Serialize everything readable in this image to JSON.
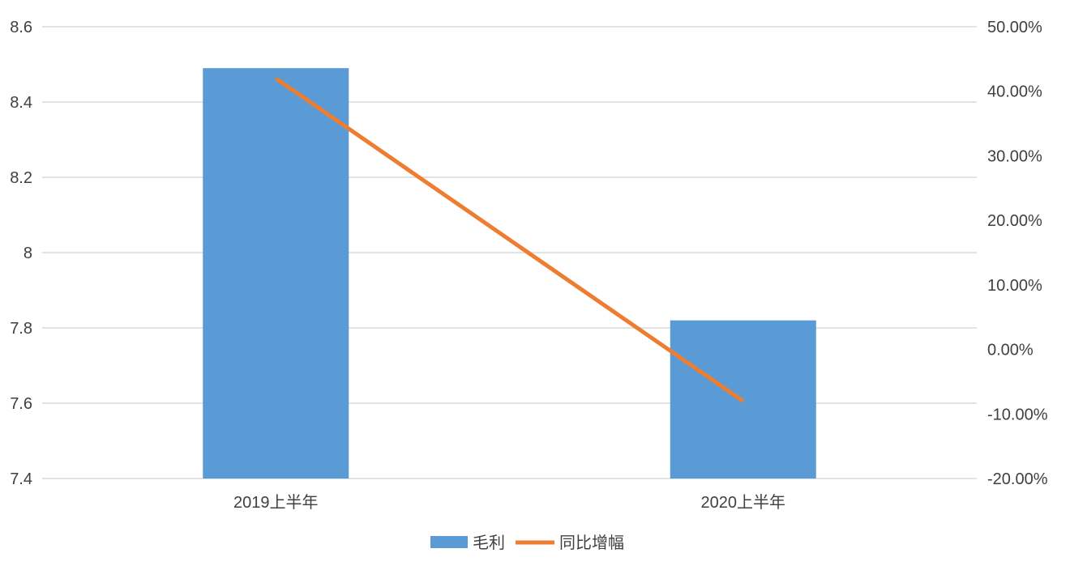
{
  "chart_data": {
    "type": "bar",
    "categories": [
      "2019上半年",
      "2020上半年"
    ],
    "series": [
      {
        "name": "毛利",
        "type": "bar",
        "axis": "left",
        "values": [
          8.49,
          7.82
        ],
        "color": "#5b9bd5"
      },
      {
        "name": "同比增幅",
        "type": "line",
        "axis": "right",
        "values": [
          42.0,
          -8.0
        ],
        "color": "#ed7d31"
      }
    ],
    "y_left": {
      "min": 7.4,
      "max": 8.6,
      "ticks": [
        "7.4",
        "7.6",
        "7.8",
        "8",
        "8.2",
        "8.4",
        "8.6"
      ],
      "tick_values": [
        7.4,
        7.6,
        7.8,
        8.0,
        8.2,
        8.4,
        8.6
      ]
    },
    "y_right": {
      "min": -20,
      "max": 50,
      "ticks": [
        "-20.00%",
        "-10.00%",
        "0.00%",
        "10.00%",
        "20.00%",
        "30.00%",
        "40.00%",
        "50.00%"
      ],
      "tick_values": [
        -20,
        -10,
        0,
        10,
        20,
        30,
        40,
        50
      ]
    },
    "grid": true,
    "legend_position": "bottom"
  }
}
